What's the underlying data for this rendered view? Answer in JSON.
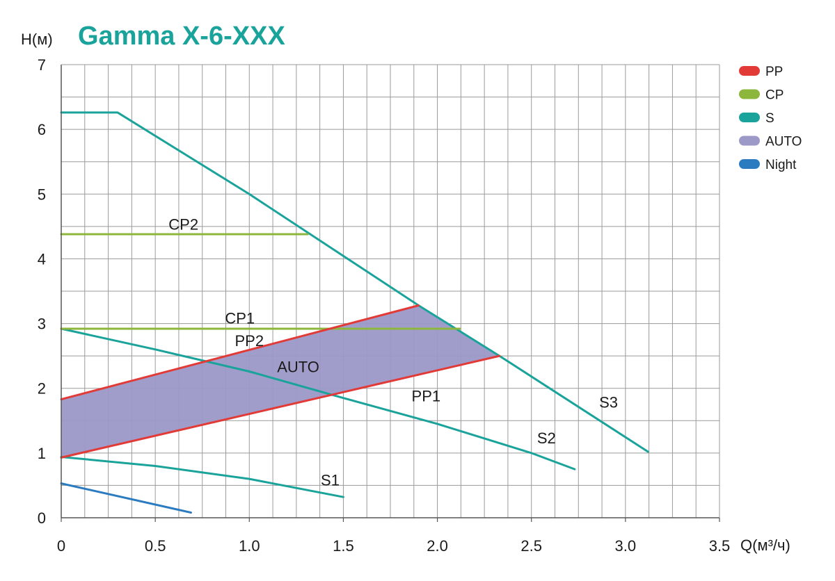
{
  "chart_data": {
    "type": "line",
    "title": "Gamma X-6-XXX",
    "ylabel": "H(м)",
    "xlabel": "Q(м³/ч)",
    "xlim": [
      0,
      3.5
    ],
    "ylim": [
      0,
      7
    ],
    "x_ticks": [
      "0",
      "0.5",
      "1.0",
      "1.5",
      "2.0",
      "2.5",
      "3.0",
      "3.5"
    ],
    "y_ticks": [
      "0",
      "1",
      "2",
      "3",
      "4",
      "5",
      "6",
      "7"
    ],
    "grid": true,
    "legend_position": "right",
    "legend": [
      {
        "label": "PP",
        "color": "#e23a36"
      },
      {
        "label": "CP",
        "color": "#8cb63c"
      },
      {
        "label": "S",
        "color": "#1aa39a"
      },
      {
        "label": "AUTO",
        "color": "#9c98c8"
      },
      {
        "label": "Night",
        "color": "#2a7bbf"
      }
    ],
    "areas": [
      {
        "name": "AUTO",
        "color": "#9c98c8",
        "points": [
          [
            0,
            1.83
          ],
          [
            1.9,
            3.28
          ],
          [
            2.33,
            2.5
          ],
          [
            0,
            0.93
          ]
        ]
      }
    ],
    "series": [
      {
        "name": "S3",
        "group": "S",
        "color": "#1aa39a",
        "points": [
          [
            0,
            6.26
          ],
          [
            0.3,
            6.26
          ],
          [
            1.0,
            5.0
          ],
          [
            1.9,
            3.28
          ],
          [
            2.33,
            2.5
          ],
          [
            3.12,
            1.02
          ]
        ]
      },
      {
        "name": "S2",
        "group": "S",
        "color": "#1aa39a",
        "points": [
          [
            0,
            2.92
          ],
          [
            0.5,
            2.6
          ],
          [
            1.0,
            2.26
          ],
          [
            1.5,
            1.85
          ],
          [
            2.0,
            1.45
          ],
          [
            2.5,
            1.0
          ],
          [
            2.73,
            0.75
          ]
        ]
      },
      {
        "name": "S1",
        "group": "S",
        "color": "#1aa39a",
        "points": [
          [
            0,
            0.94
          ],
          [
            0.5,
            0.8
          ],
          [
            1.0,
            0.6
          ],
          [
            1.5,
            0.32
          ]
        ]
      },
      {
        "name": "CP2",
        "group": "CP",
        "color": "#8cb63c",
        "points": [
          [
            0,
            4.38
          ],
          [
            1.31,
            4.38
          ]
        ]
      },
      {
        "name": "CP1",
        "group": "CP",
        "color": "#8cb63c",
        "points": [
          [
            0,
            2.92
          ],
          [
            2.12,
            2.92
          ]
        ]
      },
      {
        "name": "PP2",
        "group": "PP",
        "color": "#e23a36",
        "points": [
          [
            0,
            1.83
          ],
          [
            1.9,
            3.28
          ]
        ]
      },
      {
        "name": "PP1",
        "group": "PP",
        "color": "#e23a36",
        "points": [
          [
            0,
            0.93
          ],
          [
            2.33,
            2.5
          ]
        ]
      },
      {
        "name": "Night",
        "group": "Night",
        "color": "#2a7bbf",
        "points": [
          [
            0,
            0.53
          ],
          [
            0.69,
            0.08
          ]
        ]
      }
    ],
    "annotations": [
      {
        "text": "CP2",
        "x": 0.65,
        "y": 4.45
      },
      {
        "text": "CP1",
        "x": 0.95,
        "y": 3.0
      },
      {
        "text": "PP2",
        "x": 1.0,
        "y": 2.65
      },
      {
        "text": "AUTO",
        "x": 1.26,
        "y": 2.25
      },
      {
        "text": "PP1",
        "x": 1.94,
        "y": 1.8
      },
      {
        "text": "S3",
        "x": 2.91,
        "y": 1.7
      },
      {
        "text": "S2",
        "x": 2.58,
        "y": 1.15
      },
      {
        "text": "S1",
        "x": 1.43,
        "y": 0.5
      }
    ]
  }
}
